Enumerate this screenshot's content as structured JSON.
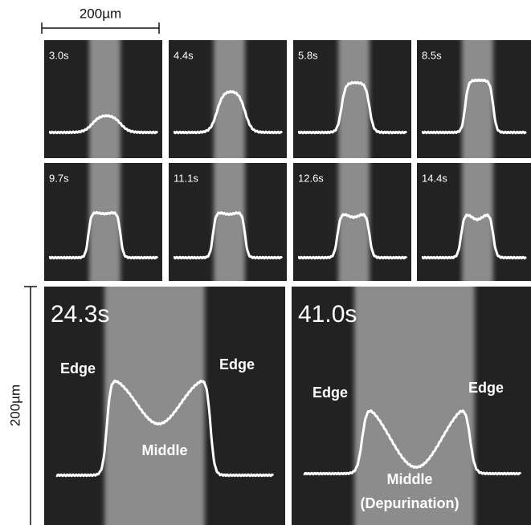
{
  "scale_bar_top": {
    "label": "200µm"
  },
  "scale_bar_left": {
    "label": "200µm"
  },
  "small_panels": [
    {
      "time": "3.0s"
    },
    {
      "time": "4.4s"
    },
    {
      "time": "5.8s"
    },
    {
      "time": "8.5s"
    },
    {
      "time": "9.7s"
    },
    {
      "time": "11.1s"
    },
    {
      "time": "12.6s"
    },
    {
      "time": "14.4s"
    }
  ],
  "large_panels": [
    {
      "time": "24.3s",
      "annotations": [
        "Edge",
        "Edge",
        "Middle"
      ]
    },
    {
      "time": "41.0s",
      "annotations": [
        "Edge",
        "Edge",
        "Middle",
        "(Depurination)"
      ]
    }
  ]
}
